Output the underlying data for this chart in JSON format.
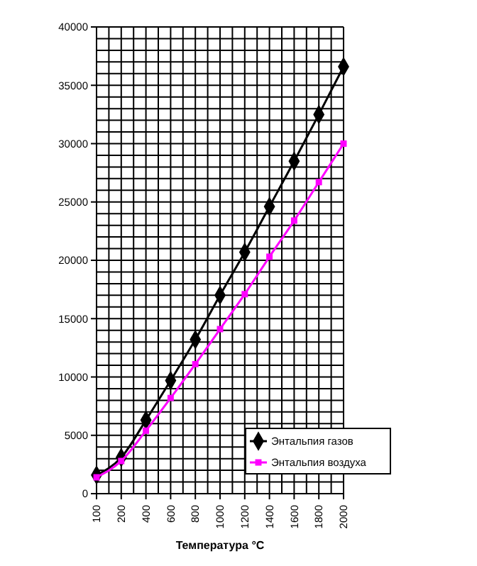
{
  "chart_data": {
    "type": "line",
    "xlabel": "Температура °С",
    "categories": [
      "100",
      "200",
      "400",
      "600",
      "800",
      "1000",
      "1200",
      "1400",
      "1600",
      "1800",
      "2000"
    ],
    "series": [
      {
        "name": "Энтальпия газов",
        "color": "#000000",
        "marker": "diamond",
        "values": [
          1600,
          3100,
          6300,
          9700,
          13200,
          17000,
          20700,
          24600,
          28500,
          32500,
          36600
        ]
      },
      {
        "name": "Энтальпия воздуха",
        "color": "#ff00ff",
        "marker": "square",
        "values": [
          1400,
          2800,
          5400,
          8200,
          11100,
          14100,
          17100,
          20300,
          23400,
          26700,
          30000
        ]
      }
    ],
    "ylim": [
      0,
      40000
    ],
    "yticks": [
      0,
      5000,
      10000,
      15000,
      20000,
      25000,
      30000,
      35000,
      40000
    ],
    "grid": true,
    "legend": "bottom right"
  }
}
